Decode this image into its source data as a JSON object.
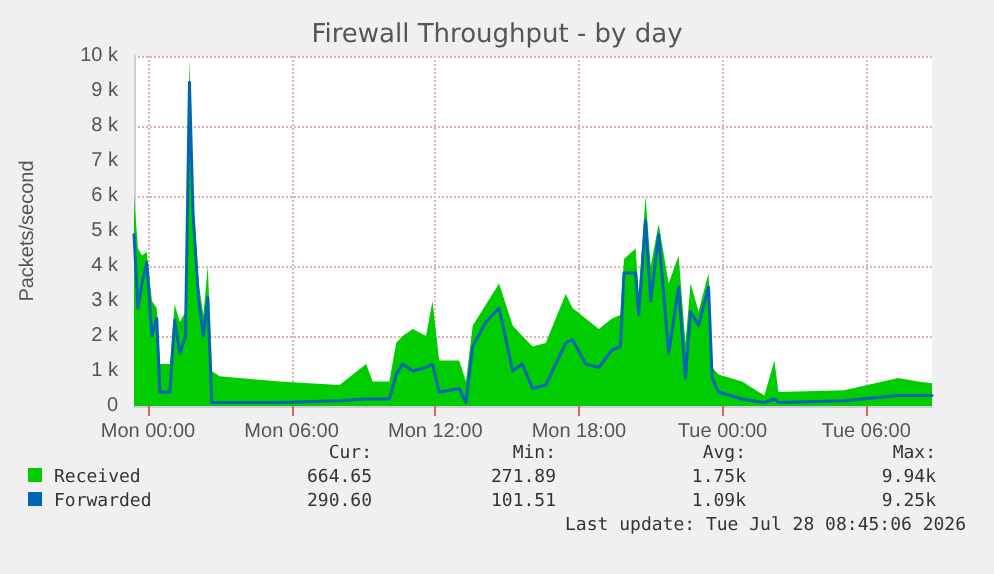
{
  "chart_data": {
    "type": "line",
    "title": "Firewall Throughput - by day",
    "ylabel": "Packets/second",
    "x": [
      "2026-07-26T23:25",
      "2026-07-26T23:35",
      "2026-07-26T23:45",
      "2026-07-26T23:57",
      "2026-07-27T00:10",
      "2026-07-27T00:22",
      "2026-07-27T00:30",
      "2026-07-27T00:55",
      "2026-07-27T01:07",
      "2026-07-27T01:20",
      "2026-07-27T01:34",
      "2026-07-27T01:44",
      "2026-07-27T01:53",
      "2026-07-27T02:07",
      "2026-07-27T02:19",
      "2026-07-27T02:30",
      "2026-07-27T02:40",
      "2026-07-27T03:00",
      "2026-07-27T05:30",
      "2026-07-27T08:00",
      "2026-07-27T09:07",
      "2026-07-27T09:23",
      "2026-07-27T10:05",
      "2026-07-27T10:22",
      "2026-07-27T10:38",
      "2026-07-27T11:04",
      "2026-07-27T11:37",
      "2026-07-27T11:53",
      "2026-07-27T12:10",
      "2026-07-27T13:00",
      "2026-07-27T13:17",
      "2026-07-27T13:34",
      "2026-07-27T14:07",
      "2026-07-27T14:40",
      "2026-07-27T15:14",
      "2026-07-27T15:38",
      "2026-07-27T16:04",
      "2026-07-27T16:37",
      "2026-07-27T17:27",
      "2026-07-27T17:44",
      "2026-07-27T18:17",
      "2026-07-27T18:50",
      "2026-07-27T19:23",
      "2026-07-27T19:44",
      "2026-07-27T19:53",
      "2026-07-27T20:22",
      "2026-07-27T20:30",
      "2026-07-27T20:47",
      "2026-07-27T21:00",
      "2026-07-27T21:20",
      "2026-07-27T21:45",
      "2026-07-27T22:10",
      "2026-07-27T22:27",
      "2026-07-27T22:40",
      "2026-07-27T23:00",
      "2026-07-27T23:25",
      "2026-07-27T23:34",
      "2026-07-27T23:50",
      "2026-07-28T00:49",
      "2026-07-28T01:45",
      "2026-07-28T02:10",
      "2026-07-28T02:20",
      "2026-07-28T05:05",
      "2026-07-28T07:20",
      "2026-07-28T08:10",
      "2026-07-28T08:45"
    ],
    "series": [
      {
        "name": "Received",
        "type": "area",
        "color": "#00cc00",
        "values": [
          6000,
          4500,
          4300,
          4400,
          3000,
          2800,
          1200,
          1200,
          2900,
          2400,
          2700,
          9940,
          6000,
          3500,
          2600,
          4000,
          1000,
          850,
          700,
          600,
          1200,
          700,
          700,
          1800,
          2000,
          2200,
          2000,
          3000,
          1300,
          1300,
          700,
          2300,
          2900,
          3500,
          2300,
          2000,
          1700,
          1800,
          3200,
          2800,
          2500,
          2200,
          2500,
          2600,
          4200,
          4500,
          3200,
          6000,
          4000,
          5200,
          3500,
          4300,
          1800,
          3500,
          2700,
          3800,
          1100,
          900,
          700,
          300,
          1300,
          400,
          450,
          800,
          700,
          650
        ]
      },
      {
        "name": "Forwarded",
        "type": "line",
        "color": "#0066b3",
        "values": [
          4900,
          2800,
          3500,
          4100,
          2000,
          2500,
          400,
          400,
          2450,
          1500,
          2000,
          9250,
          5500,
          3000,
          2000,
          3100,
          100,
          100,
          100,
          150,
          200,
          200,
          200,
          900,
          1200,
          1000,
          1100,
          1200,
          400,
          500,
          100,
          1700,
          2400,
          2800,
          1000,
          1200,
          500,
          600,
          1800,
          1900,
          1200,
          1100,
          1600,
          1700,
          3800,
          3800,
          2600,
          5300,
          3000,
          4900,
          1500,
          3400,
          800,
          2700,
          2300,
          3400,
          800,
          400,
          200,
          100,
          200,
          100,
          150,
          300,
          300,
          300
        ]
      }
    ],
    "xlim": [
      "2026-07-26T23:25",
      "2026-07-28T08:45"
    ],
    "xticks": [
      {
        "value": "2026-07-27T00:00",
        "label": "Mon 00:00"
      },
      {
        "value": "2026-07-27T06:00",
        "label": "Mon 06:00"
      },
      {
        "value": "2026-07-27T12:00",
        "label": "Mon 12:00"
      },
      {
        "value": "2026-07-27T18:00",
        "label": "Mon 18:00"
      },
      {
        "value": "2026-07-28T00:00",
        "label": "Tue 00:00"
      },
      {
        "value": "2026-07-28T06:00",
        "label": "Tue 06:00"
      }
    ],
    "ylim": [
      0,
      10000
    ],
    "yticks": [
      0,
      {
        "value": 1000,
        "label": "1 k"
      },
      {
        "value": 2000,
        "label": "2 k"
      },
      {
        "value": 3000,
        "label": "3 k"
      },
      {
        "value": 4000,
        "label": "4 k"
      },
      {
        "value": 5000,
        "label": "5 k"
      },
      {
        "value": 6000,
        "label": "6 k"
      },
      {
        "value": 7000,
        "label": "7 k"
      },
      {
        "value": 8000,
        "label": "8 k"
      },
      {
        "value": 9000,
        "label": "9 k"
      },
      {
        "value": 10000,
        "label": "10 k"
      }
    ],
    "grid": true,
    "legend": "bottom",
    "annotations": [
      "Cur:",
      "Min:",
      "Avg:",
      "Max:",
      "664.65",
      "271.89",
      "1.75k",
      "9.94k",
      "290.60",
      "101.51",
      "1.09k",
      "9.25k",
      "Last update: Tue Jul 28 08:45:06 2026"
    ]
  }
}
